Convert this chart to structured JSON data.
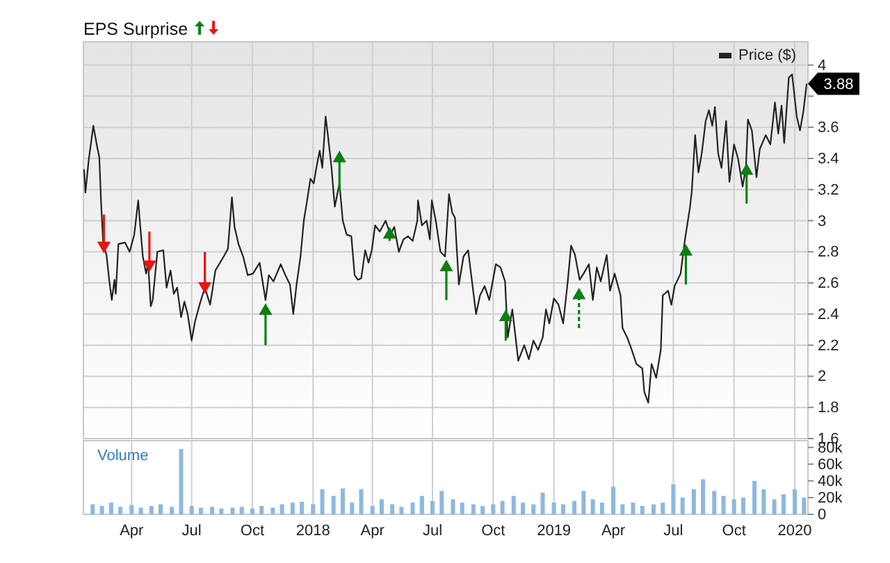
{
  "chart_data": [
    {
      "type": "line",
      "title": "EPS Surprise",
      "xlim": [
        "2017-01-18",
        "2020-01-21"
      ],
      "ylim": [
        1.6,
        4.15
      ],
      "xticks": [
        {
          "value": "2017-04-01",
          "label": null
        },
        {
          "value": "2017-07-01",
          "label": null
        },
        {
          "value": "2017-10-01",
          "label": null
        },
        {
          "value": "2018-01-01",
          "label": null
        },
        {
          "value": "2018-04-01",
          "label": null
        },
        {
          "value": "2018-07-01",
          "label": null
        },
        {
          "value": "2018-10-01",
          "label": null
        },
        {
          "value": "2019-01-01",
          "label": null
        },
        {
          "value": "2019-04-01",
          "label": null
        },
        {
          "value": "2019-07-01",
          "label": null
        },
        {
          "value": "2019-10-01",
          "label": null
        },
        {
          "value": "2020-01-01",
          "label": null
        }
      ],
      "yticks": [
        1.6,
        1.8,
        2,
        2.2,
        2.4,
        2.6,
        2.8,
        3,
        3.2,
        3.4,
        3.6,
        {
          "value": 3.8,
          "label": null
        },
        4
      ],
      "tick_labels": "y",
      "grid": true,
      "legend": "top right",
      "annotations": [
        {
          "text": "3.88",
          "x": "2020-01-19",
          "y": 3.88
        }
      ],
      "series": [
        {
          "name": "Price ($)",
          "color": "#222222",
          "x": [
            "2017-01-19",
            "2017-01-21",
            "2017-01-26",
            "2017-02-02",
            "2017-02-08",
            "2017-02-11",
            "2017-02-14",
            "2017-02-17",
            "2017-02-22",
            "2017-02-26",
            "2017-03-02",
            "2017-03-06",
            "2017-03-08",
            "2017-03-12",
            "2017-03-22",
            "2017-03-29",
            "2017-04-05",
            "2017-04-11",
            "2017-04-14",
            "2017-04-18",
            "2017-04-23",
            "2017-04-26",
            "2017-04-30",
            "2017-05-03",
            "2017-05-10",
            "2017-05-19",
            "2017-05-24",
            "2017-05-30",
            "2017-06-04",
            "2017-06-09",
            "2017-06-15",
            "2017-06-20",
            "2017-06-25",
            "2017-07-01",
            "2017-07-06",
            "2017-07-13",
            "2017-07-21",
            "2017-07-29",
            "2017-08-06",
            "2017-08-13",
            "2017-08-20",
            "2017-08-25",
            "2017-08-31",
            "2017-09-04",
            "2017-09-10",
            "2017-09-17",
            "2017-09-24",
            "2017-10-02",
            "2017-10-12",
            "2017-10-21",
            "2017-10-26",
            "2017-11-02",
            "2017-11-13",
            "2017-11-20",
            "2017-11-27",
            "2017-12-02",
            "2017-12-07",
            "2017-12-13",
            "2017-12-18",
            "2017-12-23",
            "2017-12-28",
            "2018-01-02",
            "2018-01-06",
            "2018-01-11",
            "2018-01-15",
            "2018-01-20",
            "2018-01-24",
            "2018-01-29",
            "2018-02-01",
            "2018-02-03",
            "2018-02-10",
            "2018-02-15",
            "2018-02-21",
            "2018-02-28",
            "2018-03-05",
            "2018-03-10",
            "2018-03-15",
            "2018-03-21",
            "2018-03-26",
            "2018-03-31",
            "2018-04-05",
            "2018-04-12",
            "2018-04-21",
            "2018-04-28",
            "2018-05-04",
            "2018-05-11",
            "2018-05-18",
            "2018-05-25",
            "2018-06-01",
            "2018-06-08",
            "2018-06-09",
            "2018-06-15",
            "2018-06-22",
            "2018-06-27",
            "2018-06-30",
            "2018-07-06",
            "2018-07-13",
            "2018-07-20",
            "2018-07-26",
            "2018-07-31",
            "2018-08-04",
            "2018-08-10",
            "2018-08-17",
            "2018-08-24",
            "2018-09-05",
            "2018-09-11",
            "2018-09-18",
            "2018-09-25",
            "2018-10-05",
            "2018-10-12",
            "2018-10-19",
            "2018-10-23",
            "2018-10-30",
            "2018-11-08",
            "2018-11-17",
            "2018-11-24",
            "2018-12-01",
            "2018-12-08",
            "2018-12-15",
            "2018-12-20",
            "2018-12-25",
            "2019-01-01",
            "2019-01-08",
            "2019-01-15",
            "2019-01-22",
            "2019-01-27",
            "2019-02-02",
            "2019-02-09",
            "2019-02-15",
            "2019-02-23",
            "2019-03-01",
            "2019-03-07",
            "2019-03-13",
            "2019-03-22",
            "2019-03-27",
            "2019-04-03",
            "2019-04-12",
            "2019-04-15",
            "2019-04-22",
            "2019-04-29",
            "2019-05-06",
            "2019-05-15",
            "2019-05-18",
            "2019-05-24",
            "2019-05-29",
            "2019-06-05",
            "2019-06-12",
            "2019-06-15",
            "2019-06-23",
            "2019-06-28",
            "2019-07-03",
            "2019-07-12",
            "2019-07-19",
            "2019-07-26",
            "2019-07-29",
            "2019-08-03",
            "2019-08-08",
            "2019-08-13",
            "2019-08-19",
            "2019-08-24",
            "2019-08-29",
            "2019-09-02",
            "2019-09-07",
            "2019-09-12",
            "2019-09-19",
            "2019-09-24",
            "2019-10-01",
            "2019-10-07",
            "2019-10-14",
            "2019-10-19",
            "2019-10-22",
            "2019-10-28",
            "2019-11-04",
            "2019-11-09",
            "2019-11-18",
            "2019-11-25",
            "2019-12-02",
            "2019-12-07",
            "2019-12-12",
            "2019-12-16",
            "2019-12-23",
            "2019-12-28",
            "2020-01-04",
            "2020-01-09",
            "2020-01-14",
            "2020-01-19"
          ],
          "values": [
            3.33,
            3.18,
            3.39,
            3.61,
            3.47,
            3.41,
            3.09,
            2.85,
            2.78,
            2.62,
            2.49,
            2.62,
            2.53,
            2.85,
            2.86,
            2.8,
            2.91,
            3.13,
            2.97,
            2.77,
            2.66,
            2.73,
            2.45,
            2.49,
            2.8,
            2.81,
            2.57,
            2.68,
            2.53,
            2.57,
            2.38,
            2.48,
            2.4,
            2.23,
            2.35,
            2.46,
            2.57,
            2.46,
            2.68,
            2.73,
            2.78,
            2.82,
            3.15,
            2.96,
            2.85,
            2.77,
            2.65,
            2.66,
            2.73,
            2.49,
            2.65,
            2.61,
            2.72,
            2.65,
            2.59,
            2.4,
            2.59,
            2.77,
            3.0,
            3.13,
            3.27,
            3.24,
            3.34,
            3.45,
            3.34,
            3.67,
            3.53,
            3.34,
            3.18,
            3.09,
            3.24,
            3.0,
            2.91,
            2.9,
            2.65,
            2.62,
            2.63,
            2.81,
            2.73,
            2.81,
            2.97,
            2.93,
            3.0,
            2.91,
            2.96,
            2.8,
            2.88,
            2.9,
            2.87,
            3.0,
            3.13,
            2.97,
            3.0,
            2.88,
            3.13,
            3.0,
            2.8,
            2.77,
            3.17,
            3.05,
            3.02,
            2.59,
            2.77,
            2.81,
            2.4,
            2.52,
            2.58,
            2.49,
            2.72,
            2.7,
            2.61,
            2.25,
            2.43,
            2.1,
            2.2,
            2.11,
            2.23,
            2.17,
            2.25,
            2.43,
            2.34,
            2.5,
            2.46,
            2.34,
            2.61,
            2.84,
            2.78,
            2.62,
            2.66,
            2.72,
            2.49,
            2.7,
            2.61,
            2.78,
            2.55,
            2.66,
            2.52,
            2.31,
            2.25,
            2.17,
            2.08,
            2.05,
            1.9,
            1.83,
            2.08,
            1.99,
            2.17,
            2.52,
            2.55,
            2.46,
            2.58,
            2.66,
            2.89,
            3.08,
            3.19,
            3.55,
            3.31,
            3.43,
            3.64,
            3.71,
            3.61,
            3.73,
            3.43,
            3.34,
            3.64,
            3.25,
            3.49,
            3.4,
            3.22,
            3.34,
            3.65,
            3.58,
            3.28,
            3.46,
            3.55,
            3.49,
            3.76,
            3.56,
            3.74,
            3.5,
            3.92,
            3.94,
            3.67,
            3.58,
            3.7,
            3.88
          ]
        },
        {
          "type": "scatter",
          "marker": "triangle",
          "color": "#e8140f",
          "x": [
            "2017-02-18",
            "2017-04-28",
            "2017-07-21"
          ],
          "values": [
            2.84,
            2.72,
            2.58
          ],
          "errors": [
            [
              2.84,
              3.04
            ],
            [
              2.72,
              2.93
            ],
            [
              2.58,
              2.8
            ]
          ]
        },
        {
          "type": "scatter",
          "marker": "triangle",
          "color": "#0c7f12",
          "x": [
            "2017-10-21",
            "2018-02-10",
            "2018-04-27",
            "2018-07-22",
            "2018-10-20",
            "2019-07-20",
            "2019-10-20"
          ],
          "values": [
            2.42,
            3.4,
            2.91,
            2.7,
            2.38,
            2.8,
            3.32
          ],
          "errors": [
            [
              2.2,
              2.42
            ],
            [
              3.19,
              3.4
            ],
            [
              2.87,
              2.91
            ],
            [
              2.49,
              2.7
            ],
            [
              2.23,
              2.38
            ],
            [
              2.59,
              2.8
            ],
            [
              3.11,
              3.32
            ]
          ]
        },
        {
          "type": "scatter",
          "marker": "triangle",
          "color": "#0c7f12",
          "line_style": "dashed",
          "x": [
            "2019-02-08"
          ],
          "values": [
            2.52
          ],
          "errors": [
            [
              2.31,
              2.52
            ]
          ]
        }
      ]
    },
    {
      "type": "bar",
      "title": "Volume",
      "xlim": [
        "2017-01-18",
        "2020-01-21"
      ],
      "ylim": [
        0,
        88000
      ],
      "xticks": [
        {
          "value": "2017-04-01",
          "label": "Apr"
        },
        {
          "value": "2017-07-01",
          "label": "Jul"
        },
        {
          "value": "2017-10-01",
          "label": "Oct"
        },
        {
          "value": "2018-01-01",
          "label": "2018"
        },
        {
          "value": "2018-04-01",
          "label": "Apr"
        },
        {
          "value": "2018-07-01",
          "label": "Jul"
        },
        {
          "value": "2018-10-01",
          "label": "Oct"
        },
        {
          "value": "2019-01-01",
          "label": "2019"
        },
        {
          "value": "2019-04-01",
          "label": "Apr"
        },
        {
          "value": "2019-07-01",
          "label": "Jul"
        },
        {
          "value": "2019-10-01",
          "label": "Oct"
        },
        {
          "value": "2020-01-01",
          "label": "2020"
        }
      ],
      "yticks": [
        0,
        {
          "value": 20000,
          "label": "20k"
        },
        {
          "value": 40000,
          "label": "40k"
        },
        {
          "value": 60000,
          "label": "60k"
        },
        {
          "value": 80000,
          "label": "80k"
        }
      ],
      "grid": "x",
      "color": "#8db8e0",
      "x": [
        "2017-02-01",
        "2017-02-15",
        "2017-03-01",
        "2017-03-15",
        "2017-04-01",
        "2017-04-15",
        "2017-05-01",
        "2017-05-15",
        "2017-06-01",
        "2017-06-15",
        "2017-07-01",
        "2017-07-15",
        "2017-08-01",
        "2017-08-15",
        "2017-09-01",
        "2017-09-15",
        "2017-10-01",
        "2017-10-15",
        "2017-11-01",
        "2017-11-15",
        "2017-12-01",
        "2017-12-15",
        "2018-01-01",
        "2018-01-15",
        "2018-02-01",
        "2018-02-15",
        "2018-03-01",
        "2018-03-15",
        "2018-04-01",
        "2018-04-15",
        "2018-05-01",
        "2018-05-15",
        "2018-06-01",
        "2018-06-15",
        "2018-07-01",
        "2018-07-15",
        "2018-08-01",
        "2018-08-15",
        "2018-09-01",
        "2018-09-15",
        "2018-10-01",
        "2018-10-15",
        "2018-11-01",
        "2018-11-15",
        "2018-12-01",
        "2018-12-15",
        "2019-01-01",
        "2019-01-15",
        "2019-02-01",
        "2019-02-15",
        "2019-03-01",
        "2019-03-15",
        "2019-04-01",
        "2019-04-15",
        "2019-05-01",
        "2019-05-15",
        "2019-06-01",
        "2019-06-15",
        "2019-07-01",
        "2019-07-15",
        "2019-08-01",
        "2019-08-15",
        "2019-09-01",
        "2019-09-15",
        "2019-10-01",
        "2019-10-15",
        "2019-11-01",
        "2019-11-15",
        "2019-12-01",
        "2019-12-15",
        "2020-01-01",
        "2020-01-15"
      ],
      "values": [
        12000,
        10000,
        14000,
        9000,
        11000,
        8000,
        10000,
        12000,
        9000,
        78000,
        10000,
        8000,
        9000,
        7000,
        8000,
        9000,
        7000,
        10000,
        8000,
        12000,
        14000,
        15000,
        12000,
        30000,
        22000,
        31000,
        14000,
        30000,
        10000,
        18000,
        12000,
        9000,
        14000,
        22000,
        16000,
        28000,
        18000,
        14000,
        12000,
        10000,
        12000,
        16000,
        22000,
        14000,
        12000,
        26000,
        14000,
        12000,
        16000,
        28000,
        18000,
        14000,
        33000,
        12000,
        14000,
        10000,
        12000,
        14000,
        36000,
        20000,
        30000,
        42000,
        28000,
        22000,
        18000,
        20000,
        40000,
        30000,
        18000,
        24000,
        30000,
        20000
      ]
    }
  ]
}
